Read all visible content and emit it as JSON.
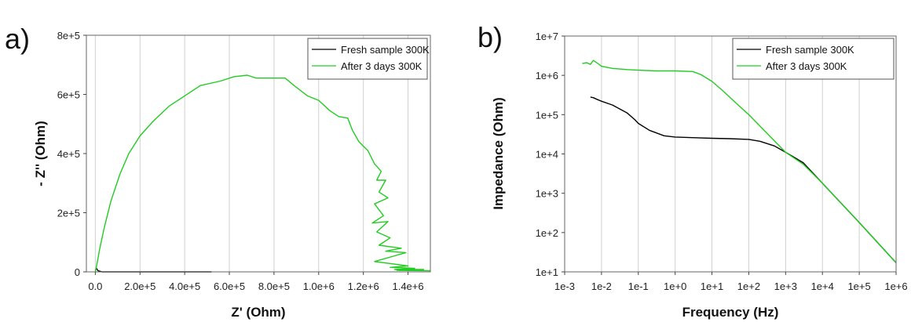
{
  "chart_data": [
    {
      "panel": "a)",
      "type": "line",
      "xlabel": "Z' (Ohm)",
      "ylabel": "- Z'' (Ohm)",
      "xlim": [
        -40000,
        1500000
      ],
      "ylim": [
        0,
        800000
      ],
      "x_ticks": [
        {
          "v": 0,
          "label": "0.0"
        },
        {
          "v": 200000,
          "label": "2.0e+5"
        },
        {
          "v": 400000,
          "label": "4.0e+5"
        },
        {
          "v": 600000,
          "label": "6.0e+5"
        },
        {
          "v": 800000,
          "label": "8.0e+5"
        },
        {
          "v": 1000000,
          "label": "1.0e+6"
        },
        {
          "v": 1200000,
          "label": "1.2e+6"
        },
        {
          "v": 1400000,
          "label": "1.4e+6"
        }
      ],
      "y_ticks": [
        {
          "v": 0,
          "label": "0"
        },
        {
          "v": 200000,
          "label": "2e+5"
        },
        {
          "v": 400000,
          "label": "4e+5"
        },
        {
          "v": 600000,
          "label": "6e+5"
        },
        {
          "v": 800000,
          "label": "8e+5"
        }
      ],
      "grid": "vertical",
      "legend": {
        "placement": "top-right"
      },
      "series": [
        {
          "name": "Fresh sample 300K",
          "color": "#000000",
          "points": [
            [
              0,
              5000
            ],
            [
              5000,
              12000
            ],
            [
              12000,
              4000
            ],
            [
              30000,
              0
            ],
            [
              100000,
              0
            ],
            [
              300000,
              0
            ],
            [
              520000,
              0
            ]
          ]
        },
        {
          "name": "After 3 days 300K",
          "color": "#22cc22",
          "points": [
            [
              0,
              0
            ],
            [
              8000,
              30000
            ],
            [
              20000,
              80000
            ],
            [
              40000,
              150000
            ],
            [
              70000,
              240000
            ],
            [
              110000,
              330000
            ],
            [
              150000,
              400000
            ],
            [
              200000,
              460000
            ],
            [
              260000,
              510000
            ],
            [
              330000,
              560000
            ],
            [
              400000,
              595000
            ],
            [
              470000,
              630000
            ],
            [
              560000,
              645000
            ],
            [
              620000,
              660000
            ],
            [
              680000,
              665000
            ],
            [
              720000,
              655000
            ],
            [
              800000,
              655000
            ],
            [
              850000,
              655000
            ],
            [
              890000,
              630000
            ],
            [
              950000,
              595000
            ],
            [
              1000000,
              580000
            ],
            [
              1050000,
              545000
            ],
            [
              1090000,
              525000
            ],
            [
              1130000,
              520000
            ],
            [
              1150000,
              480000
            ],
            [
              1180000,
              440000
            ],
            [
              1220000,
              410000
            ],
            [
              1250000,
              365000
            ],
            [
              1280000,
              340000
            ],
            [
              1260000,
              310000
            ],
            [
              1300000,
              310000
            ],
            [
              1270000,
              270000
            ],
            [
              1310000,
              250000
            ],
            [
              1250000,
              230000
            ],
            [
              1290000,
              190000
            ],
            [
              1240000,
              165000
            ],
            [
              1310000,
              170000
            ],
            [
              1260000,
              135000
            ],
            [
              1320000,
              115000
            ],
            [
              1270000,
              90000
            ],
            [
              1370000,
              80000
            ],
            [
              1300000,
              70000
            ],
            [
              1390000,
              65000
            ],
            [
              1250000,
              35000
            ],
            [
              1400000,
              20000
            ],
            [
              1320000,
              15000
            ],
            [
              1430000,
              12000
            ],
            [
              1340000,
              8000
            ],
            [
              1470000,
              8000
            ],
            [
              1350000,
              5000
            ],
            [
              1500000,
              4000
            ]
          ]
        }
      ]
    },
    {
      "panel": "b)",
      "type": "line",
      "xscale": "log",
      "yscale": "log",
      "xlabel": "Frequency (Hz)",
      "ylabel": "Impedance (Ohm)",
      "xlim": [
        0.001,
        1000000
      ],
      "ylim": [
        10,
        10000000
      ],
      "x_ticks": [
        {
          "v": 0.001,
          "label": "1e-3"
        },
        {
          "v": 0.01,
          "label": "1e-2"
        },
        {
          "v": 0.1,
          "label": "1e-1"
        },
        {
          "v": 1,
          "label": "1e+0"
        },
        {
          "v": 10,
          "label": "1e+1"
        },
        {
          "v": 100,
          "label": "1e+2"
        },
        {
          "v": 1000,
          "label": "1e+3"
        },
        {
          "v": 10000,
          "label": "1e+4"
        },
        {
          "v": 100000,
          "label": "1e+5"
        },
        {
          "v": 1000000,
          "label": "1e+6"
        }
      ],
      "y_ticks": [
        {
          "v": 10,
          "label": "1e+1"
        },
        {
          "v": 100,
          "label": "1e+2"
        },
        {
          "v": 1000,
          "label": "1e+3"
        },
        {
          "v": 10000,
          "label": "1e+4"
        },
        {
          "v": 100000,
          "label": "1e+5"
        },
        {
          "v": 1000000,
          "label": "1e+6"
        },
        {
          "v": 10000000,
          "label": "1e+7"
        }
      ],
      "grid": "vertical",
      "legend": {
        "placement": "top-right"
      },
      "series": [
        {
          "name": "Fresh sample 300K",
          "color": "#000000",
          "points": [
            [
              0.005,
              280000
            ],
            [
              0.006,
              270000
            ],
            [
              0.008,
              240000
            ],
            [
              0.01,
              220000
            ],
            [
              0.02,
              175000
            ],
            [
              0.05,
              110000
            ],
            [
              0.08,
              75000
            ],
            [
              0.1,
              60000
            ],
            [
              0.2,
              40000
            ],
            [
              0.5,
              29000
            ],
            [
              1,
              27000
            ],
            [
              3,
              26000
            ],
            [
              10,
              25000
            ],
            [
              30,
              24500
            ],
            [
              100,
              23500
            ],
            [
              200,
              21000
            ],
            [
              500,
              16000
            ],
            [
              1000,
              11000
            ],
            [
              3000,
              6000
            ],
            [
              10000,
              1800
            ],
            [
              100000,
              180
            ],
            [
              1000000,
              17
            ]
          ]
        },
        {
          "name": "After 3 days 300K",
          "color": "#22cc22",
          "points": [
            [
              0.003,
              2000000
            ],
            [
              0.004,
              2100000
            ],
            [
              0.005,
              1900000
            ],
            [
              0.006,
              2400000
            ],
            [
              0.008,
              2000000
            ],
            [
              0.01,
              1700000
            ],
            [
              0.02,
              1500000
            ],
            [
              0.05,
              1400000
            ],
            [
              0.1,
              1350000
            ],
            [
              0.3,
              1300000
            ],
            [
              1,
              1300000
            ],
            [
              3,
              1250000
            ],
            [
              5,
              1050000
            ],
            [
              10,
              700000
            ],
            [
              20,
              400000
            ],
            [
              50,
              180000
            ],
            [
              100,
              100000
            ],
            [
              300,
              35000
            ],
            [
              1000,
              11000
            ],
            [
              3000,
              5500
            ],
            [
              10000,
              1800
            ],
            [
              100000,
              180
            ],
            [
              1000000,
              17
            ]
          ]
        }
      ]
    }
  ]
}
